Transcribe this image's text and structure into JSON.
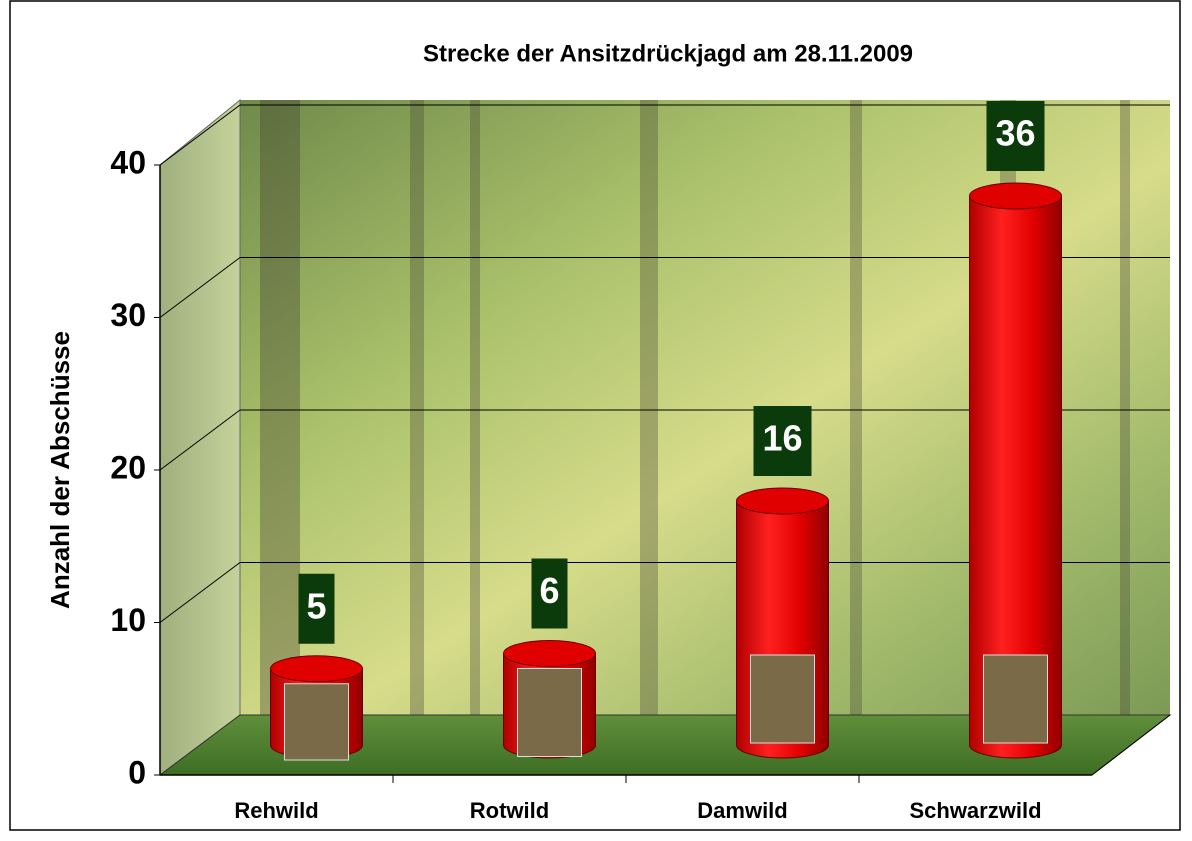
{
  "chart_data": {
    "type": "bar",
    "title": "Strecke der Ansitzdrückjagd am 28.11.2009",
    "y_label": "Anzahl der Abschüsse",
    "categories": [
      "Rehwild",
      "Rotwild",
      "Damwild",
      "Schwarzwild"
    ],
    "values": [
      5,
      6,
      16,
      36
    ],
    "color": "#e00000",
    "ylim": [
      0,
      40
    ],
    "yticks": [
      0,
      10,
      20,
      30,
      40
    ],
    "grid": true
  }
}
